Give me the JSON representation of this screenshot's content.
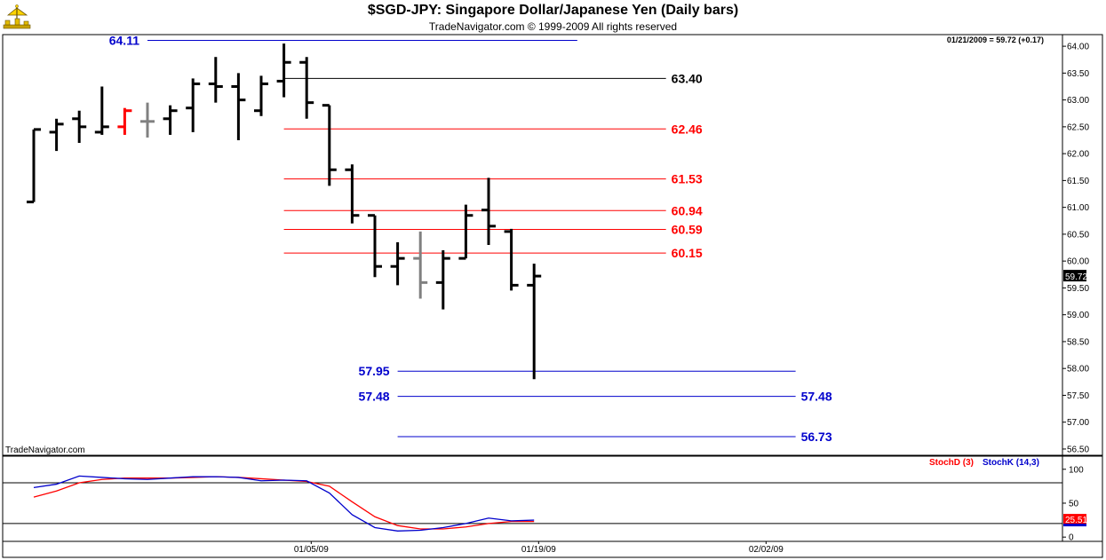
{
  "header": {
    "title": "$SGD-JPY:  Singapore Dollar/Japanese Yen  (Daily bars)",
    "subtitle": "TradeNavigator.com © 1999-2009 All rights reserved",
    "last_quote": "01/21/2009 = 59.72 (+0.17)",
    "watermark": "TradeNavigator.com",
    "logo_icon": "trade-navigator-logo-icon"
  },
  "chart_data": [
    {
      "type": "ohlc",
      "title": "$SGD-JPY:  Singapore Dollar/Japanese Yen  (Daily bars)",
      "ylim": [
        56.4,
        64.2
      ],
      "y_ticks": [
        "64.00",
        "63.50",
        "63.00",
        "62.50",
        "62.00",
        "61.50",
        "61.00",
        "60.50",
        "60.00",
        "59.50",
        "59.00",
        "58.50",
        "58.00",
        "57.50",
        "57.00",
        "56.50"
      ],
      "x_ticks": [
        {
          "label": "01/05/09",
          "bar": 12.2
        },
        {
          "label": "01/19/09",
          "bar": 22.2
        },
        {
          "label": "02/02/09",
          "bar": 32.2
        }
      ],
      "last_price_label": "59.72",
      "colors": {
        "bar": "#000000",
        "up_flat": "#ff0000",
        "neutral": "#808080",
        "fib_red": "#ff0000",
        "fib_blue": "#0000cc",
        "black_line": "#000000"
      },
      "bars": [
        {
          "date_index": 0,
          "open": 61.1,
          "high": 62.45,
          "low": 61.1,
          "close": 62.45,
          "color": "#000000"
        },
        {
          "date_index": 1,
          "open": 62.4,
          "high": 62.65,
          "low": 62.05,
          "close": 62.55,
          "color": "#000000"
        },
        {
          "date_index": 2,
          "open": 62.65,
          "high": 62.8,
          "low": 62.2,
          "close": 62.5,
          "color": "#000000"
        },
        {
          "date_index": 3,
          "open": 62.4,
          "high": 63.25,
          "low": 62.35,
          "close": 62.5,
          "color": "#000000"
        },
        {
          "date_index": 4,
          "open": 62.5,
          "high": 62.85,
          "low": 62.35,
          "close": 62.8,
          "color": "#ff0000"
        },
        {
          "date_index": 5,
          "open": 62.6,
          "high": 62.95,
          "low": 62.3,
          "close": 62.6,
          "color": "#808080"
        },
        {
          "date_index": 6,
          "open": 62.65,
          "high": 62.9,
          "low": 62.35,
          "close": 62.8,
          "color": "#000000"
        },
        {
          "date_index": 7,
          "open": 62.85,
          "high": 63.4,
          "low": 62.4,
          "close": 63.3,
          "color": "#000000"
        },
        {
          "date_index": 8,
          "open": 63.3,
          "high": 63.8,
          "low": 62.95,
          "close": 63.25,
          "color": "#000000"
        },
        {
          "date_index": 9,
          "open": 63.25,
          "high": 63.5,
          "low": 62.25,
          "close": 63.0,
          "color": "#000000"
        },
        {
          "date_index": 10,
          "open": 62.8,
          "high": 63.45,
          "low": 62.7,
          "close": 63.3,
          "color": "#000000"
        },
        {
          "date_index": 11,
          "open": 63.35,
          "high": 64.05,
          "low": 63.05,
          "close": 63.7,
          "color": "#000000"
        },
        {
          "date_index": 12,
          "open": 63.7,
          "high": 63.8,
          "low": 62.65,
          "close": 62.95,
          "color": "#000000"
        },
        {
          "date_index": 13,
          "open": 62.9,
          "high": 62.9,
          "low": 61.4,
          "close": 61.7,
          "color": "#000000"
        },
        {
          "date_index": 14,
          "open": 61.7,
          "high": 61.8,
          "low": 60.7,
          "close": 60.85,
          "color": "#000000"
        },
        {
          "date_index": 15,
          "open": 60.85,
          "high": 60.85,
          "low": 59.7,
          "close": 59.9,
          "color": "#000000"
        },
        {
          "date_index": 16,
          "open": 59.9,
          "high": 60.35,
          "low": 59.55,
          "close": 60.05,
          "color": "#000000"
        },
        {
          "date_index": 17,
          "open": 60.05,
          "high": 60.55,
          "low": 59.3,
          "close": 59.6,
          "color": "#808080"
        },
        {
          "date_index": 18,
          "open": 59.6,
          "high": 60.2,
          "low": 59.1,
          "close": 60.05,
          "color": "#000000"
        },
        {
          "date_index": 19,
          "open": 60.05,
          "high": 61.05,
          "low": 60.05,
          "close": 60.85,
          "color": "#000000"
        },
        {
          "date_index": 20,
          "open": 60.95,
          "high": 61.55,
          "low": 60.3,
          "close": 60.65,
          "color": "#000000"
        },
        {
          "date_index": 21,
          "open": 60.55,
          "high": 60.6,
          "low": 59.45,
          "close": 59.55,
          "color": "#000000"
        },
        {
          "date_index": 22,
          "open": 59.55,
          "high": 59.95,
          "low": 57.8,
          "close": 59.72,
          "color": "#000000"
        }
      ],
      "levels": [
        {
          "value": 64.11,
          "label": "64.11",
          "color": "#0000cc",
          "from_bar": 5,
          "to_bar": 23.9,
          "label_side": "left"
        },
        {
          "value": 63.4,
          "label": "63.40",
          "color": "#000000",
          "from_bar": 11,
          "to_bar": 27.8,
          "label_side": "right"
        },
        {
          "value": 62.46,
          "label": "62.46",
          "color": "#ff0000",
          "from_bar": 11,
          "to_bar": 27.8,
          "label_side": "right"
        },
        {
          "value": 61.53,
          "label": "61.53",
          "color": "#ff0000",
          "from_bar": 11,
          "to_bar": 27.8,
          "label_side": "right"
        },
        {
          "value": 60.94,
          "label": "60.94",
          "color": "#ff0000",
          "from_bar": 11,
          "to_bar": 27.8,
          "label_side": "right"
        },
        {
          "value": 60.59,
          "label": "60.59",
          "color": "#ff0000",
          "from_bar": 11,
          "to_bar": 27.8,
          "label_side": "right"
        },
        {
          "value": 60.15,
          "label": "60.15",
          "color": "#ff0000",
          "from_bar": 11,
          "to_bar": 27.8,
          "label_side": "right"
        },
        {
          "value": 57.95,
          "label": "57.95",
          "color": "#0000cc",
          "from_bar": 16,
          "to_bar": 33.5,
          "label_side": "left"
        },
        {
          "value": 57.48,
          "label": "57.48",
          "color": "#0000cc",
          "from_bar": 16,
          "to_bar": 33.5,
          "label_side": "both"
        },
        {
          "value": 56.73,
          "label": "56.73",
          "color": "#0000cc",
          "from_bar": 16,
          "to_bar": 33.5,
          "label_side": "right"
        }
      ]
    },
    {
      "type": "line",
      "ylim": [
        -5,
        118
      ],
      "y_ticks": [
        "100",
        "50",
        "0"
      ],
      "reference_lines": [
        80,
        20
      ],
      "last_value_label": "25.51",
      "series": [
        {
          "name": "StochD (3)",
          "color": "#ff0000",
          "values": [
            59,
            68,
            80,
            85,
            87,
            87,
            87,
            88,
            89,
            88,
            86,
            84,
            82,
            75,
            52,
            30,
            17,
            12,
            12,
            15,
            20,
            23,
            23
          ]
        },
        {
          "name": "StochK (14,3)",
          "color": "#0000cc",
          "values": [
            73,
            78,
            90,
            88,
            86,
            85,
            87,
            89,
            89,
            88,
            83,
            84,
            83,
            65,
            33,
            14,
            9,
            10,
            14,
            20,
            28,
            24,
            25
          ]
        }
      ]
    }
  ]
}
